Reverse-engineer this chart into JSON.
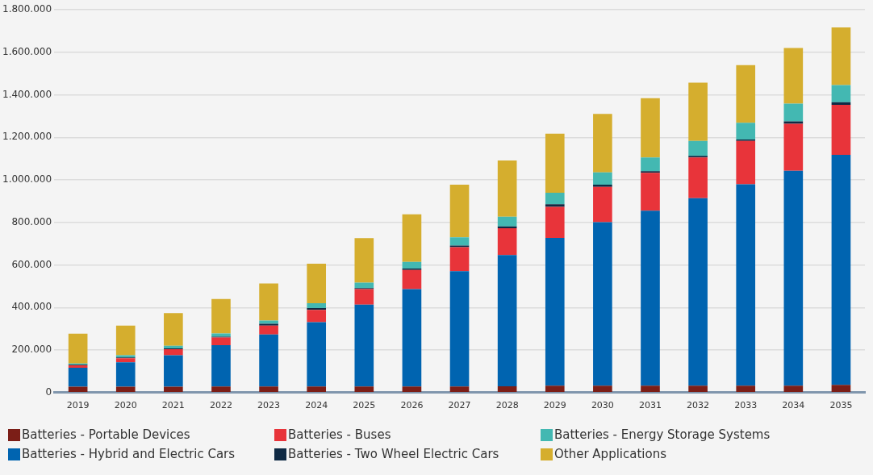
{
  "chart_data": {
    "type": "bar",
    "stacked": true,
    "categories": [
      "2019",
      "2020",
      "2021",
      "2022",
      "2023",
      "2024",
      "2025",
      "2026",
      "2027",
      "2028",
      "2029",
      "2030",
      "2031",
      "2032",
      "2033",
      "2034",
      "2035"
    ],
    "series": [
      {
        "name": "Batteries - Portable Devices",
        "color": "#7b1e17",
        "values": [
          28000,
          28000,
          28000,
          29000,
          29000,
          29000,
          29000,
          29000,
          29000,
          30000,
          32000,
          32000,
          32000,
          32000,
          32000,
          32000,
          36000
        ]
      },
      {
        "name": "Batteries - Hybrid and Electric Cars",
        "color": "#0064b0",
        "values": [
          89000,
          114000,
          148000,
          194000,
          244000,
          302000,
          384000,
          457000,
          542000,
          617000,
          695000,
          769000,
          823000,
          882000,
          947000,
          1011000,
          1082000
        ]
      },
      {
        "name": "Batteries - Buses",
        "color": "#e8343a",
        "values": [
          11000,
          19000,
          28000,
          36000,
          42000,
          58000,
          73000,
          90000,
          113000,
          126000,
          146000,
          166000,
          178000,
          191000,
          204000,
          221000,
          235000
        ]
      },
      {
        "name": "Batteries - Two Wheel Electric Cars",
        "color": "#0f2a44",
        "values": [
          3000,
          4000,
          4000,
          4000,
          8000,
          8000,
          5000,
          7000,
          7000,
          8000,
          12000,
          10000,
          8000,
          8000,
          7000,
          11000,
          12000
        ]
      },
      {
        "name": "Batteries - Energy Storage Systems",
        "color": "#43b8b2",
        "values": [
          6000,
          11000,
          12000,
          15000,
          16000,
          23000,
          26000,
          31000,
          39000,
          46000,
          54000,
          58000,
          64000,
          70000,
          78000,
          83000,
          81000
        ]
      },
      {
        "name": "Other Applications",
        "color": "#d5ae2e",
        "values": [
          140000,
          139000,
          154000,
          162000,
          174000,
          186000,
          209000,
          224000,
          247000,
          264000,
          278000,
          275000,
          279000,
          274000,
          271000,
          262000,
          271000
        ]
      }
    ],
    "ylim": [
      0,
      1800000
    ],
    "yticks": [
      {
        "value": 0,
        "label": "0"
      },
      {
        "value": 200000,
        "label": "200.000"
      },
      {
        "value": 400000,
        "label": "400.000"
      },
      {
        "value": 600000,
        "label": "600.000"
      },
      {
        "value": 800000,
        "label": "800.000"
      },
      {
        "value": 1000000,
        "label": "1.000.000"
      },
      {
        "value": 1200000,
        "label": "1.200.000"
      },
      {
        "value": 1400000,
        "label": "1.400.000"
      },
      {
        "value": 1600000,
        "label": "1.600.000"
      },
      {
        "value": 1800000,
        "label": "1.800.000"
      }
    ],
    "grid": "y",
    "legend": "bottom"
  }
}
